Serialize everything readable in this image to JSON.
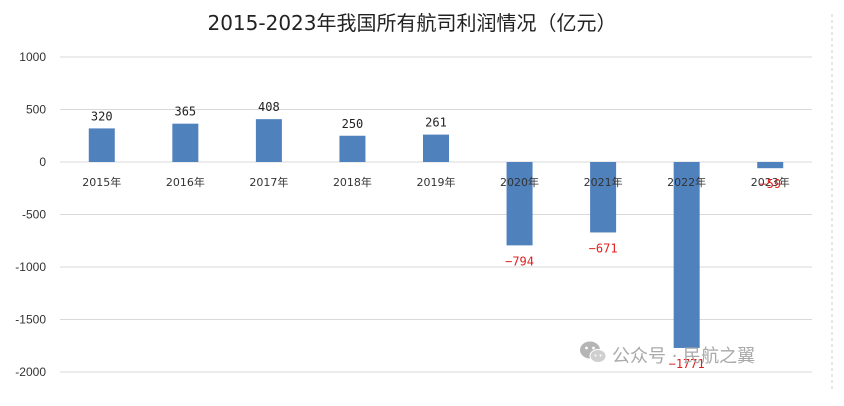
{
  "chart_data": {
    "type": "bar",
    "title": "2015-2023年我国所有航司利润情况（亿元）",
    "categories": [
      "2015年",
      "2016年",
      "2017年",
      "2018年",
      "2019年",
      "2020年",
      "2021年",
      "2022年",
      "2023年"
    ],
    "values": [
      320,
      365,
      408,
      250,
      261,
      -794,
      -671,
      -1771,
      -59
    ],
    "data_labels": [
      "320",
      "365",
      "408",
      "250",
      "261",
      "−794",
      "−671",
      "−1771",
      "−59"
    ],
    "ylim": [
      -2000,
      1000
    ],
    "yticks": [
      1000,
      500,
      0,
      -500,
      -1000,
      -1500,
      -2000
    ],
    "ytick_labels": [
      "1000",
      "500",
      "0",
      "-500",
      "-1000",
      "-1500",
      "-2000"
    ],
    "xlabel": "",
    "ylabel": "",
    "grid": true,
    "bar_color": "#4f81bd",
    "positive_label_color": "#222222",
    "negative_label_color": "#e02020",
    "gridline_color": "#d9d9d9"
  },
  "watermark": {
    "text": "公众号 · 民航之翼",
    "icon": "wechat-icon",
    "color": "#a9a9a9"
  }
}
